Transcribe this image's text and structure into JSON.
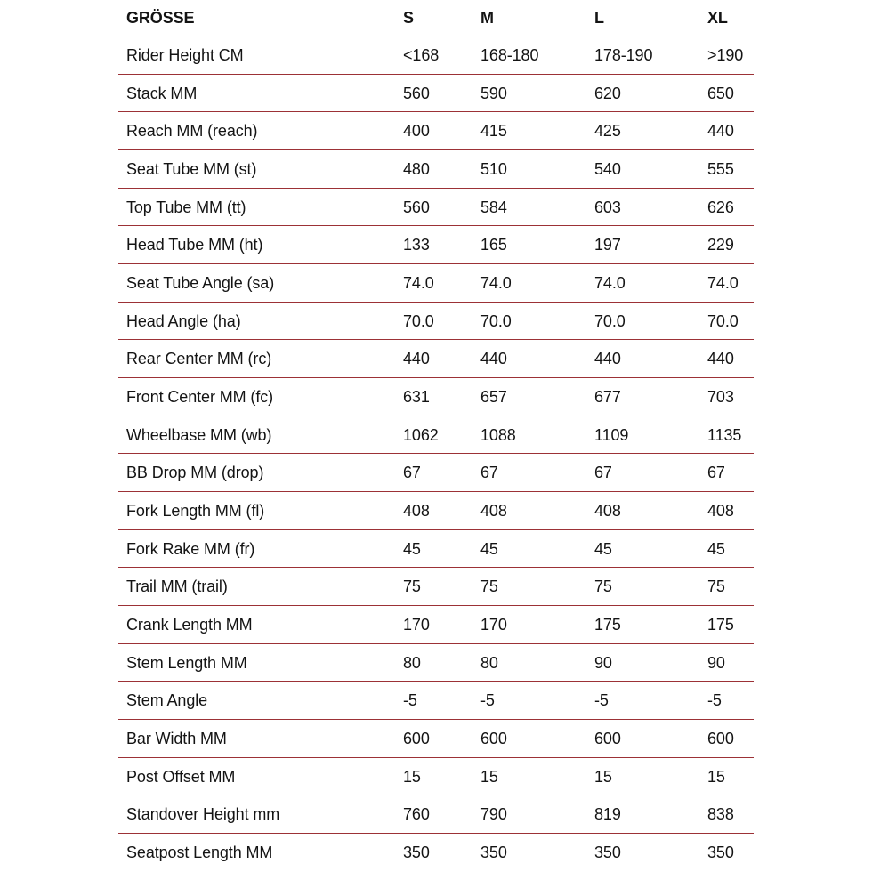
{
  "colors": {
    "separator_line": "#9c3136",
    "text": "#141414",
    "background": "#ffffff"
  },
  "chart_data": {
    "type": "table",
    "title": "GRÖSSE",
    "columns": [
      "GRÖSSE",
      "S",
      "M",
      "L",
      "XL"
    ],
    "rows": [
      [
        "Rider Height CM",
        "<168",
        "168-180",
        "178-190",
        ">190"
      ],
      [
        "Stack MM",
        "560",
        "590",
        "620",
        "650"
      ],
      [
        "Reach MM (reach)",
        "400",
        "415",
        "425",
        "440"
      ],
      [
        "Seat Tube MM (st)",
        "480",
        "510",
        "540",
        "555"
      ],
      [
        "Top Tube MM (tt)",
        "560",
        "584",
        "603",
        "626"
      ],
      [
        "Head Tube MM (ht)",
        "133",
        "165",
        "197",
        "229"
      ],
      [
        "Seat Tube Angle (sa)",
        "74.0",
        "74.0",
        "74.0",
        "74.0"
      ],
      [
        "Head Angle (ha)",
        "70.0",
        "70.0",
        "70.0",
        "70.0"
      ],
      [
        "Rear Center MM (rc)",
        "440",
        "440",
        "440",
        "440"
      ],
      [
        "Front Center MM (fc)",
        "631",
        "657",
        "677",
        "703"
      ],
      [
        "Wheelbase MM (wb)",
        "1062",
        "1088",
        "1109",
        "1135"
      ],
      [
        "BB Drop MM (drop)",
        "67",
        "67",
        "67",
        "67"
      ],
      [
        "Fork Length MM (fl)",
        "408",
        "408",
        "408",
        "408"
      ],
      [
        "Fork Rake MM (fr)",
        "45",
        "45",
        "45",
        "45"
      ],
      [
        "Trail MM (trail)",
        "75",
        "75",
        "75",
        "75"
      ],
      [
        "Crank Length MM",
        "170",
        "170",
        "175",
        "175"
      ],
      [
        "Stem Length MM",
        "80",
        "80",
        "90",
        "90"
      ],
      [
        "Stem Angle",
        "-5",
        "-5",
        "-5",
        "-5"
      ],
      [
        "Bar Width MM",
        "600",
        "600",
        "600",
        "600"
      ],
      [
        "Post Offset MM",
        "15",
        "15",
        "15",
        "15"
      ],
      [
        "Standover Height mm",
        "760",
        "790",
        "819",
        "838"
      ],
      [
        "Seatpost Length MM",
        "350",
        "350",
        "350",
        "350"
      ]
    ]
  }
}
